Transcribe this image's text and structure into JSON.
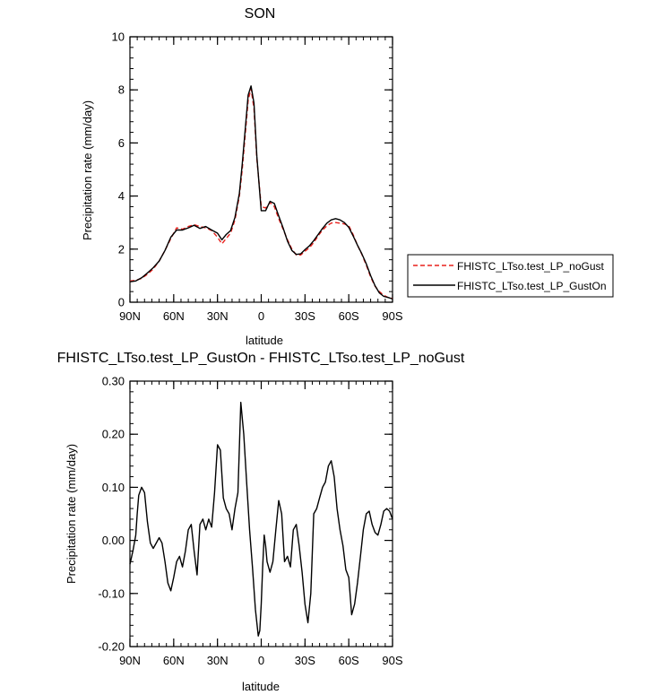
{
  "chart_data": [
    {
      "type": "line",
      "title": "SON",
      "xlabel": "latitude",
      "ylabel": "Precipitation rate (mm/day)",
      "xlim": [
        90,
        -90
      ],
      "ylim": [
        0,
        10
      ],
      "x_ticks": [
        90,
        60,
        30,
        0,
        -30,
        -60,
        -90
      ],
      "x_tick_labels": [
        "90N",
        "60N",
        "30N",
        "0",
        "30S",
        "60S",
        "90S"
      ],
      "y_ticks": [
        0,
        2,
        4,
        6,
        8,
        10
      ],
      "y_tick_labels": [
        "0",
        "2",
        "4",
        "6",
        "8",
        "10"
      ],
      "legend_position": "right",
      "series": [
        {
          "name": "FHISTC_LTso.test_LP_noGust",
          "color": "#e8201c",
          "dash": "dashed",
          "x": [
            90,
            86,
            82,
            78,
            74,
            70,
            66,
            62,
            58,
            54,
            50,
            46,
            42,
            38,
            34,
            30,
            27,
            24,
            21,
            18,
            15,
            13,
            11,
            9,
            7,
            5,
            3,
            1,
            0,
            -3,
            -6,
            -9,
            -12,
            -15,
            -18,
            -21,
            -24,
            -27,
            -30,
            -33,
            -36,
            -39,
            -42,
            -45,
            -48,
            -51,
            -54,
            -57,
            -60,
            -63,
            -66,
            -69,
            -72,
            -75,
            -78,
            -81,
            -84,
            -87,
            -90
          ],
          "values": [
            0.8,
            0.82,
            0.9,
            1.05,
            1.25,
            1.55,
            1.95,
            2.4,
            2.8,
            2.75,
            2.85,
            2.92,
            2.85,
            2.8,
            2.7,
            2.45,
            2.2,
            2.4,
            2.6,
            3.1,
            4.0,
            5.0,
            6.3,
            7.6,
            8.05,
            7.3,
            5.4,
            4.2,
            3.6,
            3.55,
            3.75,
            3.6,
            3.15,
            2.75,
            2.35,
            2.0,
            1.78,
            1.78,
            1.92,
            2.05,
            2.25,
            2.5,
            2.72,
            2.88,
            2.98,
            3.0,
            2.98,
            2.95,
            2.88,
            2.55,
            2.15,
            1.8,
            1.4,
            0.95,
            0.6,
            0.4,
            0.26,
            0.18,
            0.14
          ]
        },
        {
          "name": "FHISTC_LTso.test_LP_GustOn",
          "color": "#000000",
          "dash": "solid",
          "x": [
            90,
            86,
            82,
            78,
            74,
            70,
            66,
            62,
            58,
            54,
            50,
            46,
            42,
            38,
            34,
            30,
            27,
            24,
            21,
            18,
            15,
            13,
            11,
            9,
            7,
            5,
            3,
            1,
            0,
            -3,
            -6,
            -9,
            -12,
            -15,
            -18,
            -21,
            -24,
            -27,
            -30,
            -33,
            -36,
            -39,
            -42,
            -45,
            -48,
            -51,
            -54,
            -57,
            -60,
            -63,
            -66,
            -69,
            -72,
            -75,
            -78,
            -81,
            -84,
            -87,
            -90
          ],
          "values": [
            0.77,
            0.8,
            0.92,
            1.1,
            1.3,
            1.55,
            1.95,
            2.45,
            2.72,
            2.72,
            2.8,
            2.9,
            2.78,
            2.85,
            2.72,
            2.6,
            2.35,
            2.55,
            2.7,
            3.2,
            4.1,
            5.2,
            6.5,
            7.8,
            8.15,
            7.5,
            5.5,
            4.1,
            3.45,
            3.45,
            3.8,
            3.72,
            3.25,
            2.8,
            2.3,
            1.95,
            1.8,
            1.82,
            1.98,
            2.12,
            2.32,
            2.55,
            2.78,
            2.98,
            3.1,
            3.15,
            3.1,
            3.0,
            2.82,
            2.5,
            2.15,
            1.82,
            1.45,
            1.0,
            0.62,
            0.35,
            0.22,
            0.18,
            0.12
          ]
        }
      ]
    },
    {
      "type": "line",
      "title": "FHISTC_LTso.test_LP_GustOn - FHISTC_LTso.test_LP_noGust",
      "xlabel": "latitude",
      "ylabel": "Precipitation rate (mm/day)",
      "xlim": [
        90,
        -90
      ],
      "ylim": [
        -0.2,
        0.3
      ],
      "x_ticks": [
        90,
        60,
        30,
        0,
        -30,
        -60,
        -90
      ],
      "x_tick_labels": [
        "90N",
        "60N",
        "30N",
        "0",
        "30S",
        "60S",
        "90S"
      ],
      "y_ticks": [
        -0.2,
        -0.1,
        0,
        0.1,
        0.2,
        0.3
      ],
      "y_tick_labels": [
        "-0.20",
        "-0.10",
        "0.00",
        "0.10",
        "0.20",
        "0.30"
      ],
      "series": [
        {
          "color": "#000000",
          "dash": "solid",
          "x": [
            90,
            88,
            86,
            85,
            84,
            82,
            80,
            78,
            76,
            74,
            72,
            70,
            68,
            66,
            64,
            62,
            60,
            58,
            56,
            54,
            52,
            50,
            48,
            46,
            44,
            42,
            40,
            38,
            36,
            34,
            32,
            30,
            28,
            26,
            24,
            22,
            20,
            18,
            16,
            14,
            12,
            10,
            8,
            6,
            4,
            2,
            1,
            0,
            -1,
            -2,
            -3,
            -4,
            -6,
            -8,
            -10,
            -12,
            -14,
            -16,
            -18,
            -20,
            -22,
            -24,
            -26,
            -28,
            -30,
            -32,
            -34,
            -36,
            -38,
            -40,
            -42,
            -44,
            -46,
            -48,
            -50,
            -52,
            -54,
            -56,
            -58,
            -60,
            -62,
            -64,
            -66,
            -68,
            -70,
            -72,
            -74,
            -76,
            -78,
            -80,
            -82,
            -84,
            -86,
            -88,
            -90
          ],
          "values": [
            -0.045,
            -0.02,
            0.01,
            0.05,
            0.085,
            0.1,
            0.09,
            0.035,
            -0.005,
            -0.015,
            -0.005,
            0.005,
            -0.005,
            -0.04,
            -0.08,
            -0.095,
            -0.07,
            -0.04,
            -0.03,
            -0.05,
            -0.02,
            0.02,
            0.03,
            -0.02,
            -0.065,
            0.03,
            0.04,
            0.02,
            0.04,
            0.025,
            0.09,
            0.18,
            0.17,
            0.08,
            0.06,
            0.05,
            0.02,
            0.06,
            0.09,
            0.26,
            0.2,
            0.11,
            0.02,
            -0.05,
            -0.13,
            -0.18,
            -0.17,
            -0.12,
            -0.05,
            0.01,
            -0.01,
            -0.04,
            -0.06,
            -0.04,
            0.02,
            0.075,
            0.05,
            -0.04,
            -0.03,
            -0.05,
            0.02,
            0.03,
            -0.01,
            -0.06,
            -0.12,
            -0.155,
            -0.1,
            0.05,
            0.06,
            0.08,
            0.1,
            0.11,
            0.14,
            0.15,
            0.12,
            0.06,
            0.02,
            -0.01,
            -0.055,
            -0.07,
            -0.14,
            -0.12,
            -0.08,
            -0.03,
            0.02,
            0.05,
            0.055,
            0.03,
            0.015,
            0.01,
            0.03,
            0.055,
            0.06,
            0.055,
            0.04
          ]
        }
      ]
    }
  ]
}
